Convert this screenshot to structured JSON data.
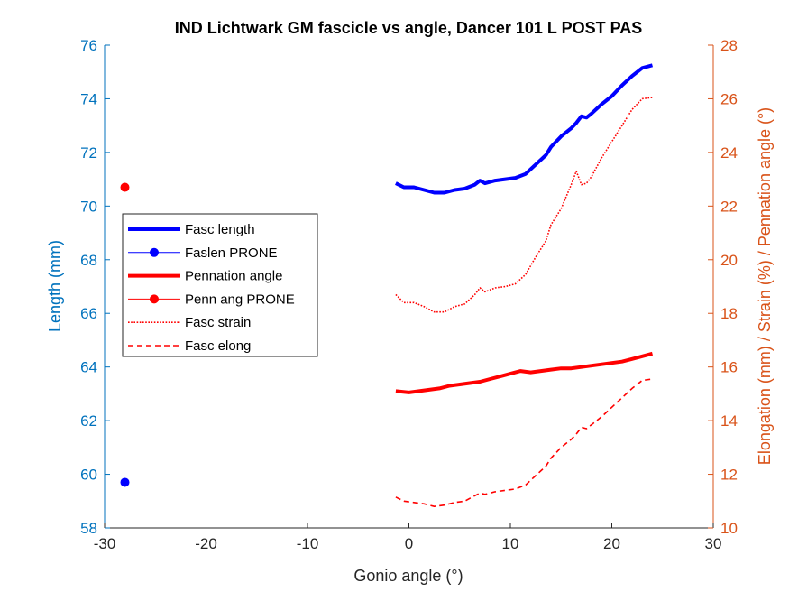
{
  "chart_data": {
    "type": "line",
    "title": "IND Lichtwark GM fascicle vs angle, Dancer 101 L POST PAS",
    "xlabel": "Gonio angle (°)",
    "ylabel_left": "Length (mm)",
    "ylabel_right": "Elongation (mm) / Strain (%) / Pennation angle (°)",
    "xlim": [
      -30,
      30
    ],
    "ylim_left": [
      58,
      76
    ],
    "ylim_right": [
      10,
      28
    ],
    "xticks": [
      -30,
      -20,
      -10,
      0,
      10,
      20,
      30
    ],
    "yticks_left": [
      58,
      60,
      62,
      64,
      66,
      68,
      70,
      72,
      74,
      76
    ],
    "yticks_right": [
      10,
      12,
      14,
      16,
      18,
      20,
      22,
      24,
      26,
      28
    ],
    "grid": false,
    "legend_position": "left-center",
    "series": [
      {
        "name": "Fasc length",
        "axis": "left",
        "color": "#0000ff",
        "style": "solid-thick",
        "x": [
          -1.3,
          -0.5,
          0.5,
          1.5,
          2.5,
          3.5,
          4.5,
          5.5,
          6.5,
          7.0,
          7.5,
          8.5,
          9.5,
          10.5,
          11.5,
          12.5,
          13.5,
          14.0,
          15.0,
          16.0,
          16.5,
          17.0,
          17.5,
          18.0,
          19.0,
          20.0,
          21.0,
          22.0,
          23.0,
          24.0
        ],
        "values": [
          70.85,
          70.7,
          70.7,
          70.6,
          70.5,
          70.5,
          70.6,
          70.65,
          70.8,
          70.95,
          70.85,
          70.95,
          71.0,
          71.05,
          71.2,
          71.55,
          71.9,
          72.2,
          72.6,
          72.9,
          73.1,
          73.35,
          73.3,
          73.45,
          73.8,
          74.1,
          74.5,
          74.85,
          75.15,
          75.25
        ]
      },
      {
        "name": "Faslen PRONE",
        "axis": "left",
        "color": "#0000ff",
        "style": "marker",
        "x": [
          -28
        ],
        "values": [
          59.7
        ]
      },
      {
        "name": "Pennation angle",
        "axis": "right",
        "color": "#ff0000",
        "style": "solid-thick",
        "x": [
          -1.3,
          0,
          1.0,
          2.0,
          3.0,
          4.0,
          5.0,
          6.0,
          7.0,
          8.0,
          9.0,
          10.0,
          11.0,
          12.0,
          13.0,
          14.0,
          15.0,
          16.0,
          17.0,
          18.0,
          19.0,
          20.0,
          21.0,
          22.0,
          23.0,
          24.0
        ],
        "values": [
          15.1,
          15.05,
          15.1,
          15.15,
          15.2,
          15.3,
          15.35,
          15.4,
          15.45,
          15.55,
          15.65,
          15.75,
          15.85,
          15.8,
          15.85,
          15.9,
          15.95,
          15.95,
          16.0,
          16.05,
          16.1,
          16.15,
          16.2,
          16.3,
          16.4,
          16.5
        ]
      },
      {
        "name": "Penn ang PRONE",
        "axis": "right",
        "color": "#ff0000",
        "style": "marker",
        "x": [
          -28
        ],
        "values": [
          22.7
        ]
      },
      {
        "name": "Fasc strain",
        "axis": "right",
        "color": "#ff0000",
        "style": "dotted",
        "x": [
          -1.3,
          -0.5,
          0.5,
          1.5,
          2.5,
          3.5,
          4.5,
          5.5,
          6.5,
          7.0,
          7.5,
          8.5,
          9.5,
          10.5,
          11.5,
          12.5,
          13.5,
          14.0,
          15.0,
          16.0,
          16.5,
          17.0,
          17.5,
          18.0,
          19.0,
          20.0,
          21.0,
          22.0,
          23.0,
          24.0
        ],
        "values": [
          18.7,
          18.4,
          18.4,
          18.25,
          18.05,
          18.05,
          18.25,
          18.35,
          18.7,
          18.95,
          18.8,
          18.95,
          19.0,
          19.1,
          19.45,
          20.1,
          20.7,
          21.3,
          21.9,
          22.8,
          23.3,
          22.8,
          22.85,
          23.1,
          23.8,
          24.4,
          25.0,
          25.6,
          26.0,
          26.05
        ]
      },
      {
        "name": "Fasc elong",
        "axis": "right",
        "color": "#ff0000",
        "style": "dashed",
        "x": [
          -1.3,
          -0.5,
          0.5,
          1.5,
          2.5,
          3.5,
          4.5,
          5.5,
          6.5,
          7.0,
          7.5,
          8.5,
          9.5,
          10.5,
          11.5,
          12.5,
          13.5,
          14.0,
          15.0,
          16.0,
          16.5,
          17.0,
          17.5,
          18.0,
          19.0,
          20.0,
          21.0,
          22.0,
          23.0,
          24.0
        ],
        "values": [
          11.15,
          11.0,
          10.95,
          10.9,
          10.8,
          10.85,
          10.95,
          11.0,
          11.2,
          11.3,
          11.25,
          11.35,
          11.4,
          11.45,
          11.6,
          11.95,
          12.3,
          12.6,
          13.0,
          13.3,
          13.5,
          13.75,
          13.7,
          13.85,
          14.15,
          14.5,
          14.85,
          15.2,
          15.5,
          15.55
        ]
      }
    ]
  }
}
